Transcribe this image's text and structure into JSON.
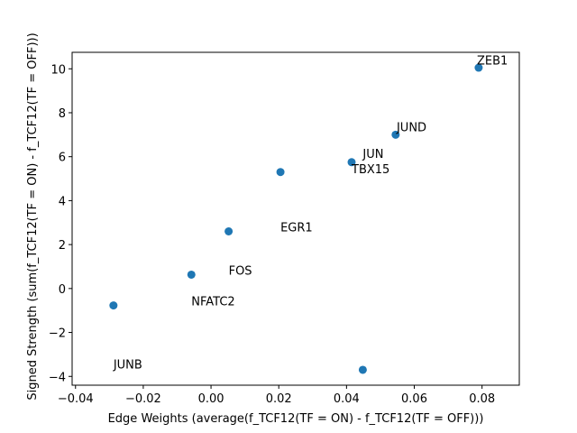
{
  "chart_data": {
    "type": "scatter",
    "xlabel": "Edge Weights (average(f_TCF12(TF = ON) - f_TCF12(TF = OFF)))",
    "ylabel": "Signed Strength (sum(f_TCF12(TF = ON) - f_TCF12(TF = OFF)))",
    "xlim": [
      -0.041,
      0.091
    ],
    "ylim": [
      -4.4,
      10.75
    ],
    "x_ticks": [
      -0.04,
      -0.02,
      0.0,
      0.02,
      0.04,
      0.06,
      0.08
    ],
    "x_tick_labels": [
      "−0.04",
      "−0.02",
      "0.00",
      "0.02",
      "0.04",
      "0.06",
      "0.08"
    ],
    "y_ticks": [
      -4,
      -2,
      0,
      2,
      4,
      6,
      8,
      10
    ],
    "y_tick_labels": [
      "−4",
      "−2",
      "0",
      "2",
      "4",
      "6",
      "8",
      "10"
    ],
    "grid": false,
    "marker_color": "#1f77b4",
    "points": [
      {
        "x": 0.079,
        "y": 10.05
      },
      {
        "x": 0.0545,
        "y": 7.0
      },
      {
        "x": 0.0415,
        "y": 5.75
      },
      {
        "x": 0.0205,
        "y": 5.3
      },
      {
        "x": 0.0052,
        "y": 2.6
      },
      {
        "x": -0.0058,
        "y": 0.63
      },
      {
        "x": -0.0288,
        "y": -0.77
      },
      {
        "x": 0.0448,
        "y": -3.7
      }
    ],
    "annotations": [
      {
        "text": "ZEB1",
        "x": 0.0785,
        "y": 10.2
      },
      {
        "text": "JUND",
        "x": 0.0548,
        "y": 7.15
      },
      {
        "text": "JUN",
        "x": 0.0448,
        "y": 5.95
      },
      {
        "text": "TBX15",
        "x": 0.0415,
        "y": 5.25
      },
      {
        "text": "EGR1",
        "x": 0.0205,
        "y": 2.6
      },
      {
        "text": "FOS",
        "x": 0.0052,
        "y": 0.63
      },
      {
        "text": "NFATC2",
        "x": -0.0058,
        "y": -0.77
      },
      {
        "text": "JUNB",
        "x": -0.0288,
        "y": -3.65
      }
    ]
  }
}
